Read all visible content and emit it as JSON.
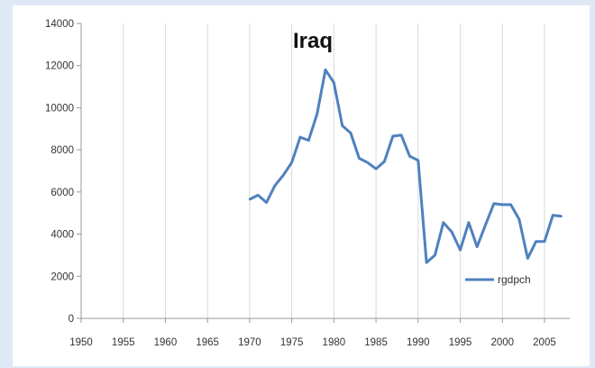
{
  "chart_data": {
    "type": "line",
    "title": "Iraq",
    "xlabel": "",
    "ylabel": "",
    "xlim": [
      1950,
      2008
    ],
    "ylim": [
      0,
      14000
    ],
    "x_ticks": [
      1950,
      1955,
      1960,
      1965,
      1970,
      1975,
      1980,
      1985,
      1990,
      1995,
      2000,
      2005
    ],
    "y_ticks": [
      0,
      2000,
      4000,
      6000,
      8000,
      10000,
      12000,
      14000
    ],
    "grid": "vertical",
    "legend_position": "bottom-right",
    "colors": {
      "series": "#4f81bd"
    },
    "series": [
      {
        "name": "rgdpch",
        "points": [
          [
            1970,
            5650
          ],
          [
            1971,
            5850
          ],
          [
            1972,
            5500
          ],
          [
            1973,
            6300
          ],
          [
            1974,
            6800
          ],
          [
            1975,
            7400
          ],
          [
            1976,
            8600
          ],
          [
            1977,
            8450
          ],
          [
            1978,
            9700
          ],
          [
            1979,
            11800
          ],
          [
            1980,
            11200
          ],
          [
            1981,
            9150
          ],
          [
            1982,
            8800
          ],
          [
            1983,
            7600
          ],
          [
            1984,
            7400
          ],
          [
            1985,
            7100
          ],
          [
            1986,
            7450
          ],
          [
            1987,
            8650
          ],
          [
            1988,
            8700
          ],
          [
            1989,
            7700
          ],
          [
            1990,
            7500
          ],
          [
            1991,
            2650
          ],
          [
            1992,
            3000
          ],
          [
            1993,
            4550
          ],
          [
            1994,
            4100
          ],
          [
            1995,
            3250
          ],
          [
            1996,
            4550
          ],
          [
            1997,
            3400
          ],
          [
            1998,
            4450
          ],
          [
            1999,
            5450
          ],
          [
            2000,
            5400
          ],
          [
            2001,
            5400
          ],
          [
            2002,
            4700
          ],
          [
            2003,
            2850
          ],
          [
            2004,
            3650
          ],
          [
            2005,
            3650
          ],
          [
            2006,
            4900
          ],
          [
            2007,
            4850
          ]
        ]
      }
    ]
  }
}
